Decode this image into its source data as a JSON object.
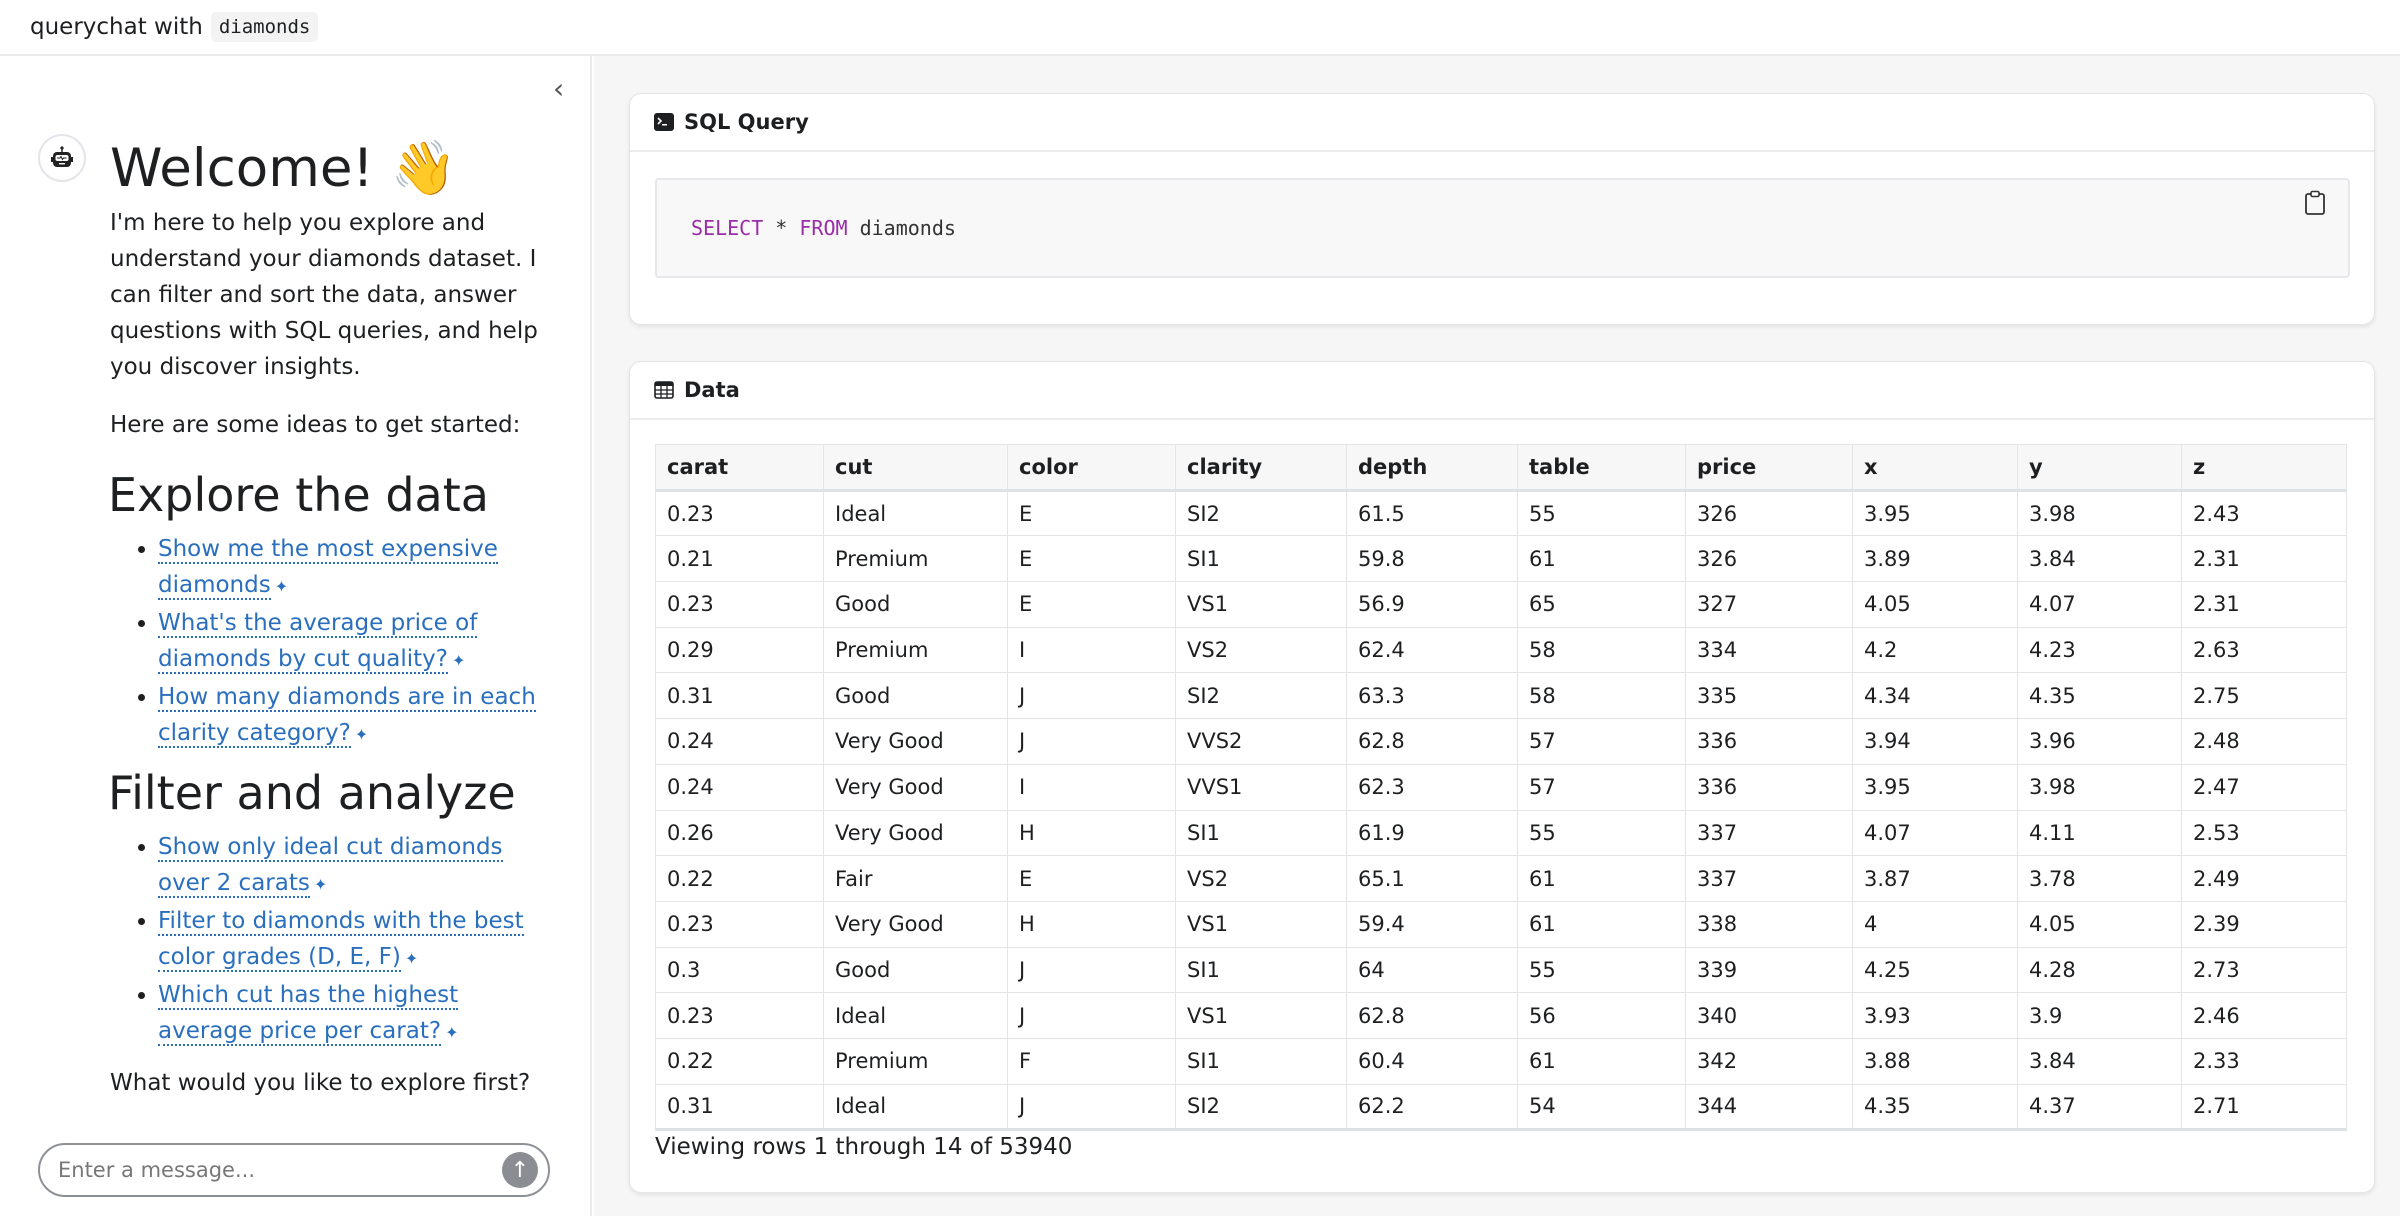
{
  "header": {
    "title": "querychat with",
    "dataset": "diamonds"
  },
  "sidebar": {
    "welcome": "Welcome! 👋",
    "intro": "I'm here to help you explore and understand your diamonds dataset. I can filter and sort the data, answer questions with SQL queries, and help you discover insights.",
    "ideas_intro": "Here are some ideas to get started:",
    "sections": [
      {
        "title": "Explore the data",
        "suggestions": [
          "Show me the most expensive diamonds",
          "What's the average price of diamonds by cut quality?",
          "How many diamonds are in each clarity category?"
        ]
      },
      {
        "title": "Filter and analyze",
        "suggestions": [
          "Show only ideal cut diamonds over 2 carats",
          "Filter to diamonds with the best color grades (D, E, F)",
          "Which cut has the highest average price per carat?"
        ]
      }
    ],
    "closing": "What would you like to explore first?",
    "input_placeholder": "Enter a message...",
    "sparkle": "✦"
  },
  "sql_card": {
    "title": "SQL Query",
    "query": {
      "kw1": "SELECT",
      "star": " * ",
      "kw2": "FROM",
      "table": " diamonds"
    }
  },
  "data_card": {
    "title": "Data",
    "columns": [
      "carat",
      "cut",
      "color",
      "clarity",
      "depth",
      "table",
      "price",
      "x",
      "y",
      "z"
    ],
    "rows": [
      [
        "0.23",
        "Ideal",
        "E",
        "SI2",
        "61.5",
        "55",
        "326",
        "3.95",
        "3.98",
        "2.43"
      ],
      [
        "0.21",
        "Premium",
        "E",
        "SI1",
        "59.8",
        "61",
        "326",
        "3.89",
        "3.84",
        "2.31"
      ],
      [
        "0.23",
        "Good",
        "E",
        "VS1",
        "56.9",
        "65",
        "327",
        "4.05",
        "4.07",
        "2.31"
      ],
      [
        "0.29",
        "Premium",
        "I",
        "VS2",
        "62.4",
        "58",
        "334",
        "4.2",
        "4.23",
        "2.63"
      ],
      [
        "0.31",
        "Good",
        "J",
        "SI2",
        "63.3",
        "58",
        "335",
        "4.34",
        "4.35",
        "2.75"
      ],
      [
        "0.24",
        "Very Good",
        "J",
        "VVS2",
        "62.8",
        "57",
        "336",
        "3.94",
        "3.96",
        "2.48"
      ],
      [
        "0.24",
        "Very Good",
        "I",
        "VVS1",
        "62.3",
        "57",
        "336",
        "3.95",
        "3.98",
        "2.47"
      ],
      [
        "0.26",
        "Very Good",
        "H",
        "SI1",
        "61.9",
        "55",
        "337",
        "4.07",
        "4.11",
        "2.53"
      ],
      [
        "0.22",
        "Fair",
        "E",
        "VS2",
        "65.1",
        "61",
        "337",
        "3.87",
        "3.78",
        "2.49"
      ],
      [
        "0.23",
        "Very Good",
        "H",
        "VS1",
        "59.4",
        "61",
        "338",
        "4",
        "4.05",
        "2.39"
      ],
      [
        "0.3",
        "Good",
        "J",
        "SI1",
        "64",
        "55",
        "339",
        "4.25",
        "4.28",
        "2.73"
      ],
      [
        "0.23",
        "Ideal",
        "J",
        "VS1",
        "62.8",
        "56",
        "340",
        "3.93",
        "3.9",
        "2.46"
      ],
      [
        "0.22",
        "Premium",
        "F",
        "SI1",
        "60.4",
        "61",
        "342",
        "3.88",
        "3.84",
        "2.33"
      ],
      [
        "0.31",
        "Ideal",
        "J",
        "SI2",
        "62.2",
        "54",
        "344",
        "4.35",
        "4.37",
        "2.71"
      ]
    ],
    "footer": "Viewing rows 1 through 14 of 53940"
  }
}
